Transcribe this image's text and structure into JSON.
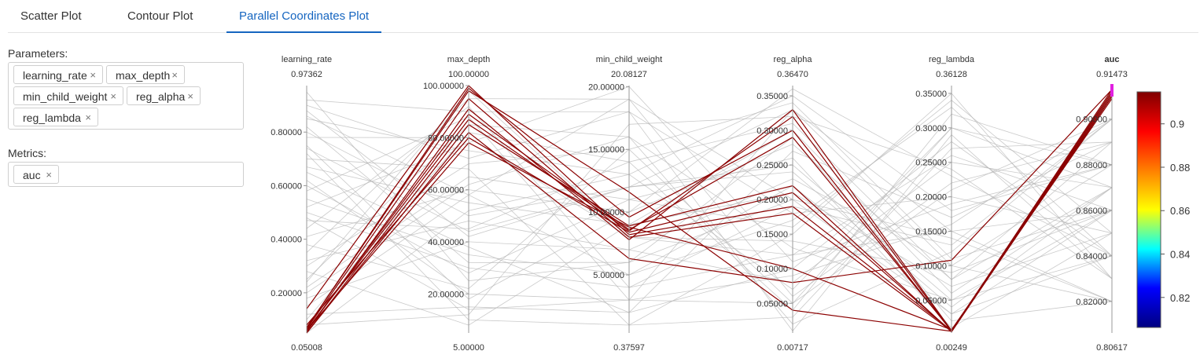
{
  "tabs": [
    {
      "label": "Scatter Plot",
      "active": false
    },
    {
      "label": "Contour Plot",
      "active": false
    },
    {
      "label": "Parallel Coordinates Plot",
      "active": true
    }
  ],
  "parameters": {
    "label": "Parameters:",
    "chips": [
      "learning_rate",
      "max_depth",
      "min_child_weight",
      "reg_alpha",
      "reg_lambda"
    ],
    "remove_icon": "×"
  },
  "metrics": {
    "label": "Metrics:",
    "chips": [
      "auc"
    ],
    "remove_icon": "×"
  },
  "colors": {
    "highlight": "#8b0000",
    "background_line": "#b4b4b4",
    "metric_title": "#1a7f1a",
    "metric_marker": "#e020e0",
    "tab_active": "#1565c0"
  },
  "chart_data": {
    "type": "parallel_coordinates",
    "color_metric": "auc",
    "axes": [
      {
        "name": "learning_rate",
        "max_label": "0.97362",
        "min_label": "0.05008",
        "min": 0.05008,
        "max": 0.97362,
        "ticks": [
          0.2,
          0.4,
          0.6,
          0.8
        ],
        "tick_labels": [
          "0.20000",
          "0.40000",
          "0.60000",
          "0.80000"
        ]
      },
      {
        "name": "max_depth",
        "max_label": "100.00000",
        "min_label": "5.00000",
        "min": 5,
        "max": 100,
        "ticks": [
          20,
          40,
          60,
          80,
          100
        ],
        "tick_labels": [
          "20.00000",
          "40.00000",
          "60.00000",
          "80.00000",
          "100.00000"
        ]
      },
      {
        "name": "min_child_weight",
        "max_label": "20.08127",
        "min_label": "0.37597",
        "min": 0.37597,
        "max": 20.08127,
        "ticks": [
          5,
          10,
          15,
          20
        ],
        "tick_labels": [
          "5.00000",
          "10.00000",
          "15.00000",
          "20.00000"
        ]
      },
      {
        "name": "reg_alpha",
        "max_label": "0.36470",
        "min_label": "0.00717",
        "min": 0.00717,
        "max": 0.3647,
        "ticks": [
          0.05,
          0.1,
          0.15,
          0.2,
          0.25,
          0.3,
          0.35
        ],
        "tick_labels": [
          "0.05000",
          "0.10000",
          "0.15000",
          "0.20000",
          "0.25000",
          "0.30000",
          "0.35000"
        ]
      },
      {
        "name": "reg_lambda",
        "max_label": "0.36128",
        "min_label": "0.00249",
        "min": 0.00249,
        "max": 0.36128,
        "ticks": [
          0.05,
          0.1,
          0.15,
          0.2,
          0.25,
          0.3,
          0.35
        ],
        "tick_labels": [
          "0.05000",
          "0.10000",
          "0.15000",
          "0.20000",
          "0.25000",
          "0.30000",
          "0.35000"
        ]
      },
      {
        "name": "auc",
        "max_label": "0.91473",
        "min_label": "0.80617",
        "min": 0.80617,
        "max": 0.91473,
        "is_metric": true,
        "ticks": [
          0.82,
          0.84,
          0.86,
          0.88,
          0.9
        ],
        "tick_labels": [
          "0.82000",
          "0.84000",
          "0.86000",
          "0.88000",
          "0.90000"
        ]
      }
    ],
    "colorbar": {
      "ticks": [
        0.82,
        0.84,
        0.86,
        0.88,
        0.9
      ],
      "tick_labels": [
        "0.82",
        "0.84",
        "0.86",
        "0.88",
        "0.9"
      ],
      "range": [
        0.80617,
        0.91473
      ],
      "colorscale": [
        "#000080",
        "#0000ff",
        "#00ffff",
        "#ffff00",
        "#ff7f00",
        "#ff0000",
        "#800000"
      ]
    },
    "highlighted_lines": [
      [
        0.07,
        99,
        9.6,
        0.3,
        0.005,
        0.913
      ],
      [
        0.055,
        91,
        7.8,
        0.33,
        0.006,
        0.912
      ],
      [
        0.06,
        87,
        8.5,
        0.32,
        0.005,
        0.911
      ],
      [
        0.05,
        85,
        8.9,
        0.22,
        0.004,
        0.91
      ],
      [
        0.08,
        80,
        8.4,
        0.21,
        0.005,
        0.912
      ],
      [
        0.14,
        100,
        8.2,
        0.19,
        0.006,
        0.91
      ],
      [
        0.06,
        78,
        8.8,
        0.1,
        0.007,
        0.909
      ],
      [
        0.05,
        82,
        6.3,
        0.08,
        0.108,
        0.913
      ],
      [
        0.07,
        98,
        11.6,
        0.04,
        0.005,
        0.911
      ],
      [
        0.06,
        89,
        8.6,
        0.29,
        0.006,
        0.91
      ],
      [
        0.065,
        95,
        8.0,
        0.18,
        0.005,
        0.912
      ]
    ],
    "background_lines": [
      [
        0.5,
        30,
        4,
        0.12,
        0.15,
        0.86
      ],
      [
        0.8,
        50,
        12,
        0.25,
        0.05,
        0.84
      ],
      [
        0.3,
        70,
        15,
        0.05,
        0.3,
        0.88
      ],
      [
        0.62,
        20,
        3,
        0.33,
        0.1,
        0.82
      ],
      [
        0.92,
        90,
        18,
        0.18,
        0.2,
        0.85
      ],
      [
        0.18,
        40,
        7,
        0.08,
        0.25,
        0.87
      ],
      [
        0.41,
        60,
        10,
        0.28,
        0.08,
        0.89
      ],
      [
        0.72,
        10,
        1,
        0.15,
        0.35,
        0.83
      ],
      [
        0.25,
        85,
        16,
        0.02,
        0.12,
        0.9
      ],
      [
        0.55,
        35,
        5,
        0.22,
        0.03,
        0.86
      ],
      [
        0.85,
        75,
        13,
        0.35,
        0.18,
        0.88
      ],
      [
        0.12,
        15,
        2,
        0.1,
        0.28,
        0.84
      ],
      [
        0.67,
        55,
        9,
        0.3,
        0.06,
        0.87
      ],
      [
        0.35,
        95,
        19,
        0.06,
        0.22,
        0.89
      ],
      [
        0.95,
        25,
        6,
        0.2,
        0.14,
        0.82
      ],
      [
        0.22,
        65,
        11,
        0.26,
        0.01,
        0.85
      ],
      [
        0.47,
        45,
        14,
        0.04,
        0.32,
        0.88
      ],
      [
        0.78,
        80,
        8,
        0.14,
        0.09,
        0.86
      ],
      [
        0.08,
        12,
        17,
        0.32,
        0.24,
        0.83
      ],
      [
        0.58,
        88,
        3,
        0.09,
        0.16,
        0.9
      ],
      [
        0.88,
        42,
        12,
        0.24,
        0.04,
        0.87
      ],
      [
        0.15,
        58,
        5,
        0.17,
        0.33,
        0.84
      ],
      [
        0.38,
        22,
        15,
        0.34,
        0.11,
        0.86
      ],
      [
        0.7,
        68,
        1,
        0.03,
        0.27,
        0.89
      ],
      [
        0.28,
        8,
        9,
        0.21,
        0.07,
        0.85
      ],
      [
        0.52,
        78,
        20,
        0.11,
        0.19,
        0.88
      ],
      [
        0.82,
        32,
        6,
        0.29,
        0.02,
        0.82
      ],
      [
        0.05,
        52,
        13,
        0.07,
        0.3,
        0.87
      ],
      [
        0.44,
        92,
        4,
        0.19,
        0.13,
        0.9
      ],
      [
        0.75,
        18,
        10,
        0.36,
        0.23,
        0.84
      ],
      [
        0.2,
        62,
        16,
        0.13,
        0.05,
        0.86
      ],
      [
        0.65,
        38,
        2,
        0.27,
        0.17,
        0.89
      ],
      [
        0.9,
        72,
        18,
        0.01,
        0.29,
        0.83
      ],
      [
        0.32,
        48,
        7,
        0.23,
        0.1,
        0.88
      ],
      [
        0.6,
        28,
        11,
        0.16,
        0.34,
        0.85
      ],
      [
        0.1,
        82,
        14,
        0.31,
        0.08,
        0.87
      ],
      [
        0.48,
        14,
        3,
        0.05,
        0.21,
        0.9
      ],
      [
        0.86,
        58,
        19,
        0.2,
        0.03,
        0.84
      ],
      [
        0.24,
        98,
        8,
        0.12,
        0.26,
        0.86
      ],
      [
        0.74,
        44,
        12,
        0.33,
        0.15,
        0.82
      ]
    ]
  }
}
